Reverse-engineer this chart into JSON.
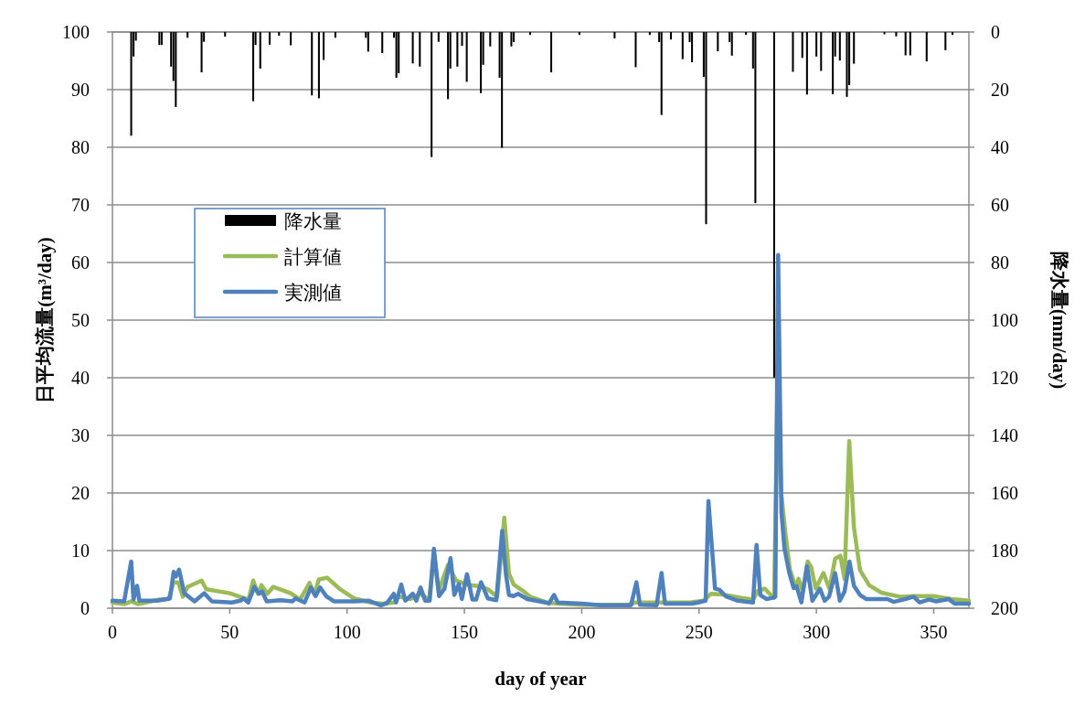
{
  "chart_data": {
    "type": "line",
    "xlabel": "day of year",
    "ylabel": "日平均流量(m³/day)",
    "y2label": "降水量(mm/day)",
    "xlim": [
      0,
      365
    ],
    "xticks": [
      0,
      50,
      100,
      150,
      200,
      250,
      300,
      350
    ],
    "ylim": [
      0,
      100
    ],
    "yticks": [
      0,
      10,
      20,
      30,
      40,
      50,
      60,
      70,
      80,
      90,
      100
    ],
    "y2lim": [
      200,
      0
    ],
    "y2ticks": [
      0,
      20,
      40,
      60,
      80,
      100,
      120,
      140,
      160,
      180,
      200
    ],
    "grid": "y",
    "legend": "left",
    "marker": "none",
    "line_style": "solid",
    "series": [
      {
        "name": "降水量",
        "type": "bar",
        "axis": "y2",
        "color": "#000000",
        "x": [
          8,
          9,
          10,
          20,
          21,
          25,
          26,
          27,
          32,
          38,
          39,
          48,
          60,
          61,
          63,
          67,
          71,
          76,
          85,
          88,
          90,
          95,
          108,
          109,
          115,
          120,
          121,
          122,
          128,
          131,
          136,
          139,
          143,
          144,
          147,
          149,
          151,
          157,
          158,
          161,
          165,
          166,
          170,
          171,
          178,
          187,
          199,
          214,
          223,
          229,
          233,
          234,
          238,
          243,
          246,
          247,
          252,
          253,
          258,
          263,
          264,
          270,
          273,
          274,
          282,
          290,
          294,
          296,
          300,
          302,
          307,
          308,
          310,
          313,
          314,
          316,
          329,
          334,
          338,
          340,
          347,
          355,
          358
        ],
        "values": [
          36,
          8.5,
          3,
          4.5,
          4.5,
          12,
          17,
          26,
          2,
          14,
          3.4,
          1.6,
          24,
          4.5,
          12.7,
          4.4,
          1.3,
          4.6,
          22,
          23,
          9.7,
          2,
          2,
          6.8,
          7.3,
          2,
          15.9,
          14.3,
          10.9,
          12,
          43.4,
          3.4,
          23.3,
          12.7,
          12,
          4.8,
          17.3,
          21.2,
          11.4,
          5,
          15.9,
          40.2,
          5,
          3.5,
          1,
          14,
          1,
          2.2,
          12.2,
          1,
          3.5,
          28.8,
          2.6,
          9.4,
          3.5,
          10.5,
          15.6,
          66.7,
          6.7,
          3.5,
          8.2,
          1,
          12.7,
          59.4,
          120,
          13.8,
          9,
          21.7,
          8.5,
          13.5,
          21.6,
          8.5,
          9.9,
          22.5,
          18.4,
          11,
          0.8,
          1.5,
          8.1,
          8.1,
          10.2,
          6.3,
          1
        ]
      },
      {
        "name": "計算値",
        "axis": "y",
        "color": "#9bbb59",
        "x": [
          0,
          5,
          8,
          11,
          20,
          24,
          26,
          28,
          30,
          32,
          38,
          40,
          50,
          58,
          60,
          62,
          63.5,
          66,
          68.5,
          76,
          80,
          84,
          86,
          88,
          91.5,
          97,
          103,
          110,
          115,
          120,
          122,
          127,
          131,
          135,
          137,
          139,
          143,
          146.5,
          152,
          157,
          160,
          164,
          167,
          169,
          171,
          175,
          178,
          185,
          190,
          200,
          220,
          223,
          234,
          246,
          252,
          255,
          260,
          268,
          273,
          275,
          278,
          281,
          282,
          283.5,
          285,
          286.8,
          288.7,
          291.3,
          292.4,
          294.2,
          296.3,
          297.8,
          299.7,
          303,
          305.6,
          308,
          310.2,
          312,
          314,
          316,
          318.6,
          322.5,
          327.7,
          335.5,
          342,
          349.8,
          357.6,
          365
        ],
        "values": [
          1,
          0.7,
          1.2,
          0.7,
          1.5,
          1.6,
          4.5,
          4.5,
          2,
          3.7,
          4.8,
          3.3,
          2.6,
          1.5,
          4.8,
          2.5,
          4,
          2.5,
          3.7,
          2.6,
          1.5,
          4.4,
          2.4,
          5,
          5.3,
          3.3,
          1.7,
          1,
          0.8,
          1,
          2,
          1.6,
          2.5,
          1.5,
          9.5,
          3,
          7.5,
          4.8,
          4,
          3.8,
          3.3,
          2,
          15.7,
          6,
          4.1,
          3,
          2,
          1,
          0.8,
          0.6,
          0.6,
          1,
          1,
          1,
          1.3,
          2.5,
          2.4,
          1.8,
          1.5,
          3,
          3.4,
          2.1,
          1.8,
          40,
          20,
          13,
          6.7,
          3.5,
          5.1,
          2.9,
          8.1,
          7.1,
          3.4,
          6.1,
          3.4,
          8.6,
          9.1,
          5.1,
          29,
          14,
          6.6,
          4,
          2.7,
          2,
          2.1,
          2.1,
          1.6,
          1.3
        ]
      },
      {
        "name": "実測値",
        "axis": "y",
        "color": "#4f81bd",
        "x": [
          0,
          5,
          8,
          9,
          10.5,
          11.5,
          19.3,
          24.5,
          26.1,
          27,
          28.4,
          30.6,
          35,
          39.1,
          42.4,
          50.8,
          54.6,
          55.9,
          57.9,
          60.5,
          62.5,
          63.8,
          65.7,
          71.6,
          76.8,
          78,
          81.9,
          84.6,
          86.6,
          88.5,
          91.1,
          94.4,
          102.8,
          109.3,
          114.4,
          117,
          119.9,
          120.9,
          123.1,
          124.8,
          128,
          129.5,
          131.3,
          133.3,
          135.2,
          137,
          139.2,
          141.5,
          144.1,
          145.7,
          147.6,
          148.9,
          151.1,
          153.4,
          155,
          157.1,
          160,
          163.6,
          166.1,
          167.7,
          169,
          170.9,
          172.9,
          176.8,
          184.5,
          186,
          188.2,
          189.8,
          200.2,
          208,
          221,
          223.3,
          224.8,
          231.9,
          234,
          235.5,
          246.9,
          249.5,
          252.8,
          254,
          256.8,
          258.7,
          261.3,
          266.5,
          273,
          274.5,
          276.1,
          278.7,
          281.3,
          282.5,
          283.7,
          285.1,
          286.4,
          288.4,
          290.3,
          291.6,
          293.6,
          296,
          298.3,
          301.5,
          303.5,
          305.4,
          308,
          310,
          312,
          314.1,
          316,
          318.6,
          321.2,
          330.3,
          332.9,
          338.1,
          341.4,
          344,
          347.9,
          351.1,
          356.3,
          358.9,
          365
        ],
        "values": [
          1.3,
          1.2,
          8.1,
          1.5,
          3.9,
          1.3,
          1.3,
          1.7,
          6.3,
          5.5,
          6.7,
          2.6,
          1.2,
          2.6,
          1.2,
          1,
          1.3,
          1.7,
          1,
          3.7,
          2.5,
          2.9,
          1.2,
          1.4,
          1.2,
          1.7,
          1,
          3.6,
          2.1,
          3.6,
          2.1,
          1.2,
          1.2,
          1.3,
          0.5,
          0.9,
          2.5,
          1,
          4.1,
          1.3,
          2.5,
          1.3,
          3.6,
          1.3,
          1.3,
          10.3,
          2.1,
          3.4,
          8.7,
          2.3,
          4.2,
          1.6,
          5.9,
          1.5,
          1.5,
          4.5,
          1.7,
          1.4,
          13.4,
          5.9,
          2.3,
          2.1,
          2.5,
          1.6,
          1,
          0.8,
          2.3,
          1,
          0.8,
          0.5,
          0.5,
          4.5,
          0.6,
          0.5,
          6.1,
          0.8,
          0.8,
          1,
          1.3,
          18.6,
          3.4,
          3.2,
          2.1,
          1.3,
          1,
          11,
          2.3,
          1.6,
          1.8,
          2,
          61.3,
          16.7,
          10.4,
          6.2,
          3.5,
          3.8,
          1,
          7.3,
          1.3,
          3.4,
          1.3,
          2,
          6.1,
          1.3,
          2.9,
          8.1,
          3.9,
          2.3,
          1.6,
          1.6,
          1.1,
          1.6,
          2,
          1,
          1.5,
          1.2,
          1.6,
          0.8,
          0.8
        ]
      }
    ]
  }
}
